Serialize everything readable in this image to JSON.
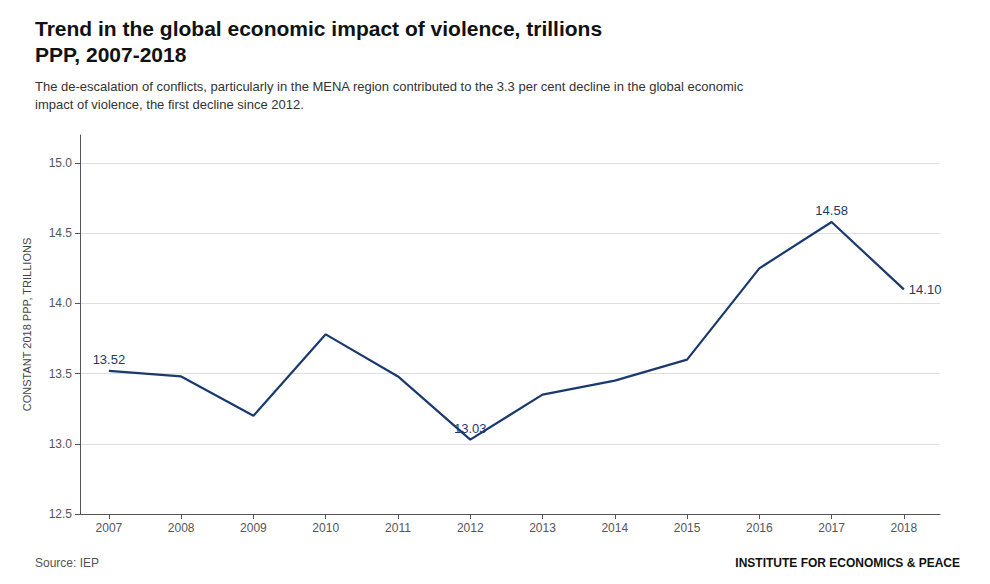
{
  "chart_data": {
    "type": "line",
    "title": "Trend in the global economic impact of violence, trillions\nPPP, 2007-2018",
    "subtitle": "The de-escalation of conflicts, particularly in the MENA region contributed to the 3.3 per cent decline in the global economic\nimpact of violence, the first decline since 2012.",
    "ylabel": "CONSTANT 2018 PPP, TRILLIONS",
    "source": "Source: IEP",
    "watermark": "INSTITUTE FOR ECONOMICS & PEACE",
    "x": [
      2007,
      2008,
      2009,
      2010,
      2011,
      2012,
      2013,
      2014,
      2015,
      2016,
      2017,
      2018
    ],
    "values": [
      13.52,
      13.48,
      13.2,
      13.78,
      13.48,
      13.03,
      13.35,
      13.45,
      13.6,
      14.25,
      14.58,
      14.1
    ],
    "color": "#1a3a6e",
    "annotations": [
      {
        "x": 2007,
        "y": 13.52,
        "text": "13.52"
      },
      {
        "x": 2012,
        "y": 13.03,
        "text": "13.03"
      },
      {
        "x": 2017,
        "y": 14.58,
        "text": "14.58"
      },
      {
        "x": 2018,
        "y": 14.1,
        "text": "14.10"
      }
    ],
    "xlim": [
      2006.6,
      2018.5
    ],
    "xticks": [
      2007,
      2008,
      2009,
      2010,
      2011,
      2012,
      2013,
      2014,
      2015,
      2016,
      2017,
      2018
    ],
    "ylim": [
      12.5,
      15.2
    ],
    "yticks": [
      12.5,
      {
        "value": 13.0,
        "label": "13.0"
      },
      13.5,
      {
        "value": 14.0,
        "label": "14.0"
      },
      14.5,
      {
        "value": 15.0,
        "label": "15.0"
      }
    ],
    "grid": true
  }
}
